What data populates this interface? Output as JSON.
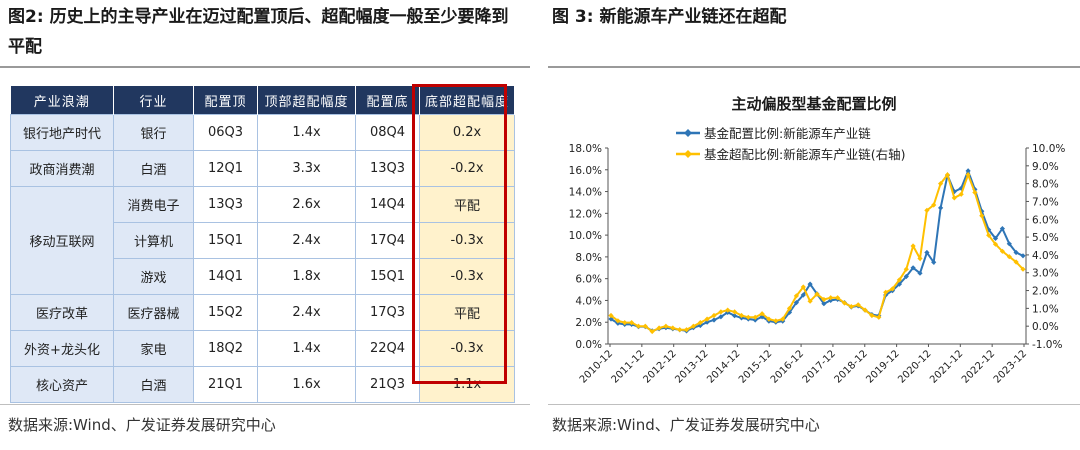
{
  "left": {
    "fig_label": "图2:",
    "title": "历史上的主导产业在迈过配置顶后、超配幅度一般至少要降到平配",
    "headers": [
      "产业浪潮",
      "行业",
      "配置顶",
      "顶部超配幅度",
      "配置底",
      "底部超配幅度"
    ],
    "rows": [
      {
        "wave": "银行地产时代",
        "industry": "银行",
        "top": "06Q3",
        "top_over": "1.4x",
        "bottom": "08Q4",
        "bottom_over": "0.2x"
      },
      {
        "wave": "政商消费潮",
        "industry": "白酒",
        "top": "12Q1",
        "top_over": "3.3x",
        "bottom": "13Q3",
        "bottom_over": "-0.2x"
      },
      {
        "wave": "移动互联网",
        "industry": "消费电子",
        "top": "13Q3",
        "top_over": "2.6x",
        "bottom": "14Q4",
        "bottom_over": "平配"
      },
      {
        "wave": "",
        "industry": "计算机",
        "top": "15Q1",
        "top_over": "2.4x",
        "bottom": "17Q4",
        "bottom_over": "-0.3x"
      },
      {
        "wave": "",
        "industry": "游戏",
        "top": "14Q1",
        "top_over": "1.8x",
        "bottom": "15Q1",
        "bottom_over": "-0.3x"
      },
      {
        "wave": "医疗改革",
        "industry": "医疗器械",
        "top": "15Q2",
        "top_over": "2.4x",
        "bottom": "17Q3",
        "bottom_over": "平配"
      },
      {
        "wave": "外资+龙头化",
        "industry": "家电",
        "top": "18Q2",
        "top_over": "1.4x",
        "bottom": "22Q4",
        "bottom_over": "-0.3x"
      },
      {
        "wave": "核心资产",
        "industry": "白酒",
        "top": "21Q1",
        "top_over": "1.6x",
        "bottom": "21Q3",
        "bottom_over": "1.1x"
      }
    ],
    "source": "数据来源:Wind、广发证券发展研究中心"
  },
  "right": {
    "fig_label": "图 3:",
    "title": "新能源车产业链还在超配",
    "source": "数据来源:Wind、广发证券发展研究中心"
  },
  "chart_data": {
    "type": "line",
    "title": "主动偏股型基金配置比例",
    "legend_position": "top",
    "colors": {
      "series1": "#2e75b6",
      "series2": "#ffc000"
    },
    "x_ticks": [
      "2010-12",
      "2011-12",
      "2012-12",
      "2013-12",
      "2014-12",
      "2015-12",
      "2016-12",
      "2017-12",
      "2018-12",
      "2019-12",
      "2020-12",
      "2021-12",
      "2022-12",
      "2023-12"
    ],
    "y_left": {
      "ticks": [
        "0.0%",
        "2.0%",
        "4.0%",
        "6.0%",
        "8.0%",
        "10.0%",
        "12.0%",
        "14.0%",
        "16.0%",
        "18.0%"
      ],
      "min": 0,
      "max": 18
    },
    "y_right": {
      "ticks": [
        "-1.0%",
        "0.0%",
        "1.0%",
        "2.0%",
        "3.0%",
        "4.0%",
        "5.0%",
        "6.0%",
        "7.0%",
        "8.0%",
        "9.0%",
        "10.0%"
      ],
      "min": -1,
      "max": 10
    },
    "series": [
      {
        "name": "基金配置比例:新能源车产业链",
        "axis": "left",
        "values": [
          2.3,
          1.9,
          1.8,
          1.8,
          1.6,
          1.6,
          1.2,
          1.4,
          1.5,
          1.4,
          1.3,
          1.2,
          1.5,
          1.7,
          2.0,
          2.2,
          2.5,
          2.9,
          2.6,
          2.4,
          2.3,
          2.2,
          2.5,
          2.1,
          2.0,
          2.1,
          2.9,
          3.8,
          4.5,
          5.5,
          4.6,
          3.7,
          4.0,
          4.1,
          3.8,
          3.4,
          3.5,
          3.1,
          2.7,
          2.6,
          4.5,
          4.9,
          5.5,
          6.2,
          7.0,
          6.5,
          8.4,
          7.5,
          12.5,
          15.5,
          14.0,
          14.3,
          15.9,
          14.2,
          12.2,
          10.5,
          9.7,
          10.6,
          9.2,
          8.4,
          8.1
        ]
      },
      {
        "name": "基金超配比例:新能源车产业链(右轴)",
        "axis": "right",
        "values": [
          0.6,
          0.3,
          0.2,
          0.2,
          0.0,
          0.0,
          -0.3,
          -0.1,
          0.0,
          -0.1,
          -0.2,
          -0.2,
          0.0,
          0.2,
          0.4,
          0.6,
          0.8,
          0.9,
          0.8,
          0.6,
          0.5,
          0.5,
          0.7,
          0.4,
          0.3,
          0.4,
          1.0,
          1.7,
          2.2,
          1.4,
          1.8,
          1.5,
          1.6,
          1.6,
          1.3,
          1.1,
          1.2,
          0.9,
          0.6,
          0.5,
          1.9,
          2.1,
          2.6,
          3.2,
          4.5,
          3.8,
          6.5,
          6.8,
          8.0,
          8.5,
          7.2,
          7.4,
          8.5,
          7.5,
          6.2,
          5.1,
          4.6,
          4.2,
          3.9,
          3.6,
          3.2
        ]
      }
    ]
  }
}
